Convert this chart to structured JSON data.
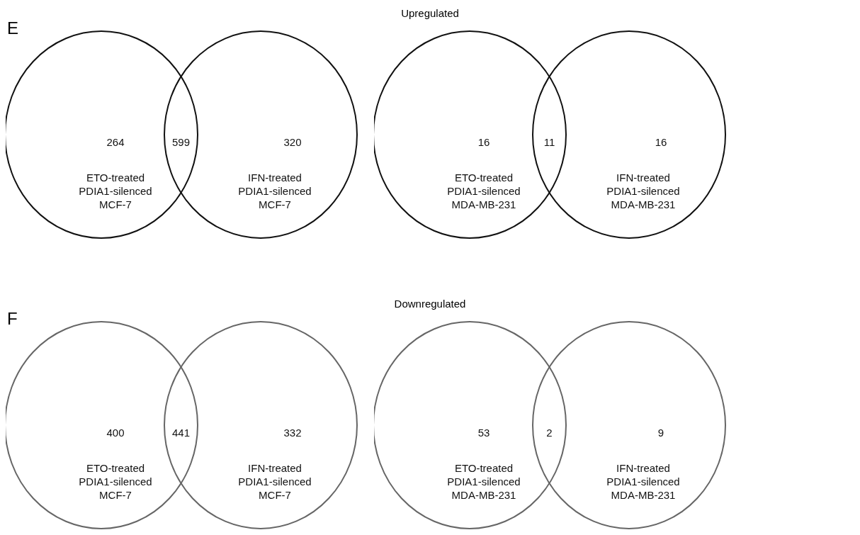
{
  "chart_data": [
    {
      "type": "other",
      "title": "Upregulated",
      "annotations": [
        "E"
      ],
      "color": "#111111",
      "categories": [
        "ETO-treated\nPDIA1-silenced\nMCF-7",
        null,
        "IFN-treated\nPDIA1-silenced\nMCF-7"
      ],
      "values": [
        264,
        599,
        320
      ],
      "data_labels": true
    },
    {
      "type": "other",
      "color": "#111111",
      "categories": [
        "ETO-treated\nPDIA1-silenced\nMDA-MB-231",
        null,
        "IFN-treated\nPDIA1-silenced\nMDA-MB-231"
      ],
      "values": [
        16,
        11,
        16
      ],
      "data_labels": true
    },
    {
      "type": "other",
      "title": "Downregulated",
      "annotations": [
        "F"
      ],
      "color": "#666666",
      "categories": [
        "ETO-treated\nPDIA1-silenced\nMCF-7",
        null,
        "IFN-treated\nPDIA1-silenced\nMCF-7"
      ],
      "values": [
        400,
        441,
        332
      ],
      "data_labels": true
    },
    {
      "type": "other",
      "color": "#666666",
      "categories": [
        "ETO-treated\nPDIA1-silenced\nMDA-MB-231",
        null,
        "IFN-treated\nPDIA1-silenced\nMDA-MB-231"
      ],
      "values": [
        53,
        2,
        9
      ],
      "data_labels": true
    }
  ]
}
